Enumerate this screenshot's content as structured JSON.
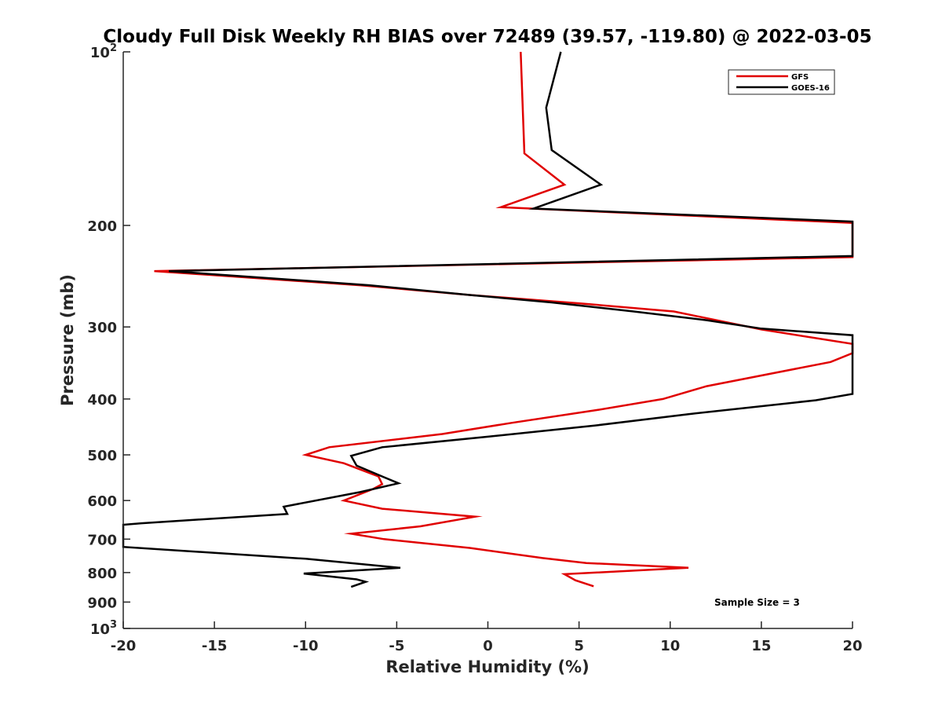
{
  "chart_data": {
    "type": "line",
    "title": "Cloudy Full Disk Weekly RH BIAS over 72489 (39.57, -119.80) @ 2022-03-05",
    "xlabel": "Relative Humidity (%)",
    "ylabel": "Pressure (mb)",
    "xlim": [
      -20,
      20
    ],
    "ylim": [
      100,
      1000
    ],
    "y_scale": "log",
    "y_reversed": true,
    "grid": false,
    "legend_position": "top-right",
    "x_ticks": [
      -20,
      -15,
      -10,
      -5,
      0,
      5,
      10,
      15,
      20
    ],
    "x_tick_labels": [
      "-20",
      "-15",
      "-10",
      "-5",
      "0",
      "5",
      "10",
      "15",
      "20"
    ],
    "y_ticks": [
      100,
      200,
      300,
      400,
      500,
      600,
      700,
      800,
      900,
      1000
    ],
    "y_tick_labels": [
      {
        "base": "10",
        "sup": "2"
      },
      {
        "base": "200",
        "sup": ""
      },
      {
        "base": "300",
        "sup": ""
      },
      {
        "base": "400",
        "sup": ""
      },
      {
        "base": "500",
        "sup": ""
      },
      {
        "base": "600",
        "sup": ""
      },
      {
        "base": "700",
        "sup": ""
      },
      {
        "base": "800",
        "sup": ""
      },
      {
        "base": "900",
        "sup": ""
      },
      {
        "base": "10",
        "sup": "3"
      }
    ],
    "annotation": "Sample Size = 3",
    "series": [
      {
        "name": "GFS",
        "color": "#e00000",
        "points": [
          [
            1.8,
            100
          ],
          [
            2.0,
            150
          ],
          [
            4.2,
            170
          ],
          [
            0.7,
            186
          ],
          [
            20.0,
            198
          ],
          [
            20.0,
            227
          ],
          [
            -18.3,
            240
          ],
          [
            -7.0,
            254
          ],
          [
            -1.0,
            264
          ],
          [
            5.0,
            273
          ],
          [
            10.2,
            282
          ],
          [
            15.0,
            303
          ],
          [
            20.0,
            321
          ],
          [
            20.0,
            333
          ],
          [
            18.8,
            345
          ],
          [
            12.0,
            380
          ],
          [
            9.6,
            400
          ],
          [
            6.0,
            418
          ],
          [
            1.3,
            440
          ],
          [
            -2.5,
            460
          ],
          [
            -8.7,
            485
          ],
          [
            -10.0,
            500
          ],
          [
            -7.9,
            517
          ],
          [
            -6.0,
            545
          ],
          [
            -5.8,
            562
          ],
          [
            -6.3,
            573
          ],
          [
            -7.9,
            600
          ],
          [
            -5.8,
            620
          ],
          [
            -0.7,
            640
          ],
          [
            -3.7,
            665
          ],
          [
            -7.5,
            685
          ],
          [
            -5.7,
            700
          ],
          [
            -1.0,
            725
          ],
          [
            3.0,
            755
          ],
          [
            5.4,
            770
          ],
          [
            11.0,
            785
          ],
          [
            4.2,
            805
          ],
          [
            4.8,
            825
          ],
          [
            5.8,
            845
          ]
        ]
      },
      {
        "name": "GOES-16",
        "color": "#000000",
        "points": [
          [
            4.0,
            100
          ],
          [
            3.2,
            125
          ],
          [
            3.5,
            148
          ],
          [
            6.2,
            170
          ],
          [
            2.5,
            187
          ],
          [
            20.0,
            197
          ],
          [
            20.0,
            226
          ],
          [
            -17.5,
            240
          ],
          [
            -6.5,
            254
          ],
          [
            -1.0,
            264
          ],
          [
            3.5,
            272
          ],
          [
            8.0,
            282
          ],
          [
            12.0,
            292
          ],
          [
            15.0,
            302
          ],
          [
            20.0,
            310
          ],
          [
            20.0,
            392
          ],
          [
            18.0,
            402
          ],
          [
            11.0,
            425
          ],
          [
            5.8,
            445
          ],
          [
            0.0,
            465
          ],
          [
            -5.8,
            485
          ],
          [
            -7.5,
            502
          ],
          [
            -7.2,
            522
          ],
          [
            -5.8,
            545
          ],
          [
            -4.9,
            560
          ],
          [
            -7.0,
            580
          ],
          [
            -11.2,
            615
          ],
          [
            -11.0,
            633
          ],
          [
            -19.0,
            657
          ],
          [
            -20.0,
            661
          ],
          [
            -20.0,
            722
          ],
          [
            -10.0,
            757
          ],
          [
            -4.8,
            785
          ],
          [
            -10.1,
            803
          ],
          [
            -7.2,
            822
          ],
          [
            -6.7,
            830
          ],
          [
            -7.5,
            847
          ]
        ]
      }
    ]
  }
}
